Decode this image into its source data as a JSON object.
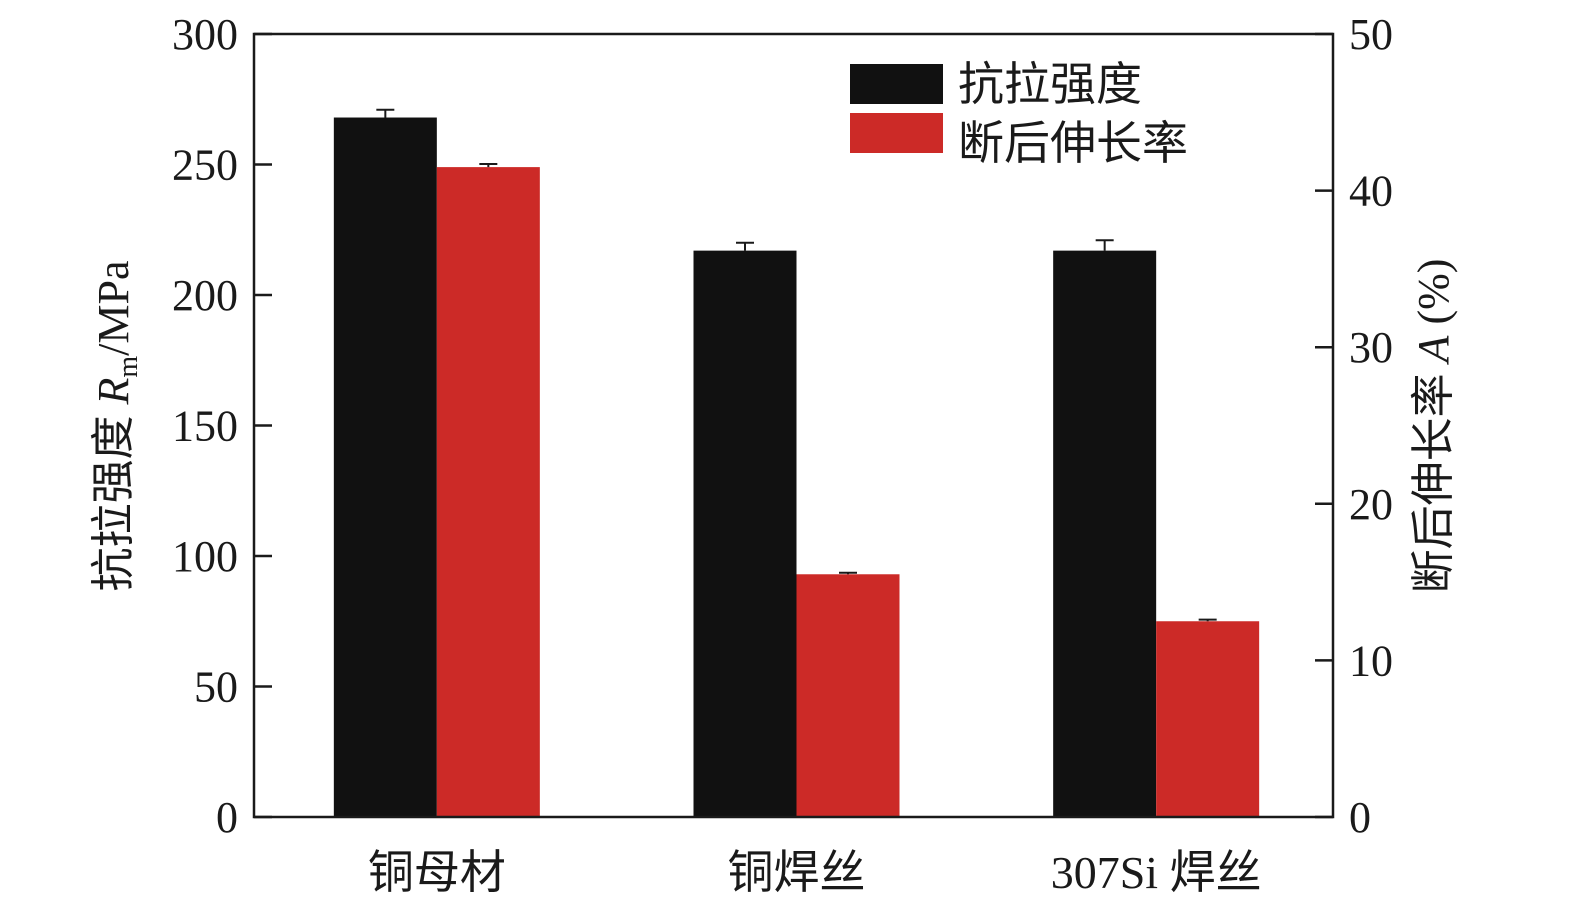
{
  "chart_data": {
    "type": "bar",
    "categories": [
      "铜母材",
      "铜焊丝",
      "307Si 焊丝"
    ],
    "series": [
      {
        "name": "抗拉强度",
        "axis": "left",
        "color": "#111111",
        "values": [
          268,
          217,
          217
        ],
        "errors": [
          3,
          3,
          4
        ]
      },
      {
        "name": "断后伸长率",
        "axis": "right",
        "color": "#cc2a27",
        "values": [
          41.5,
          15.5,
          12.5
        ],
        "errors": [
          0.2,
          0.1,
          0.1
        ]
      }
    ],
    "yleft": {
      "label": "抗拉强度",
      "symbol": "R",
      "subscript": "m",
      "unit": "/MPa",
      "lim": [
        0,
        300
      ],
      "ticks": [
        0,
        50,
        100,
        150,
        200,
        250,
        300
      ]
    },
    "yright": {
      "label": "断后伸长率",
      "symbol": "A",
      "unit": " (%)",
      "lim": [
        0,
        50
      ],
      "ticks": [
        0,
        10,
        20,
        30,
        40,
        50
      ]
    },
    "legend": {
      "position": "top-right",
      "entries": [
        "抗拉强度",
        "断后伸长率"
      ]
    },
    "grid": false
  }
}
